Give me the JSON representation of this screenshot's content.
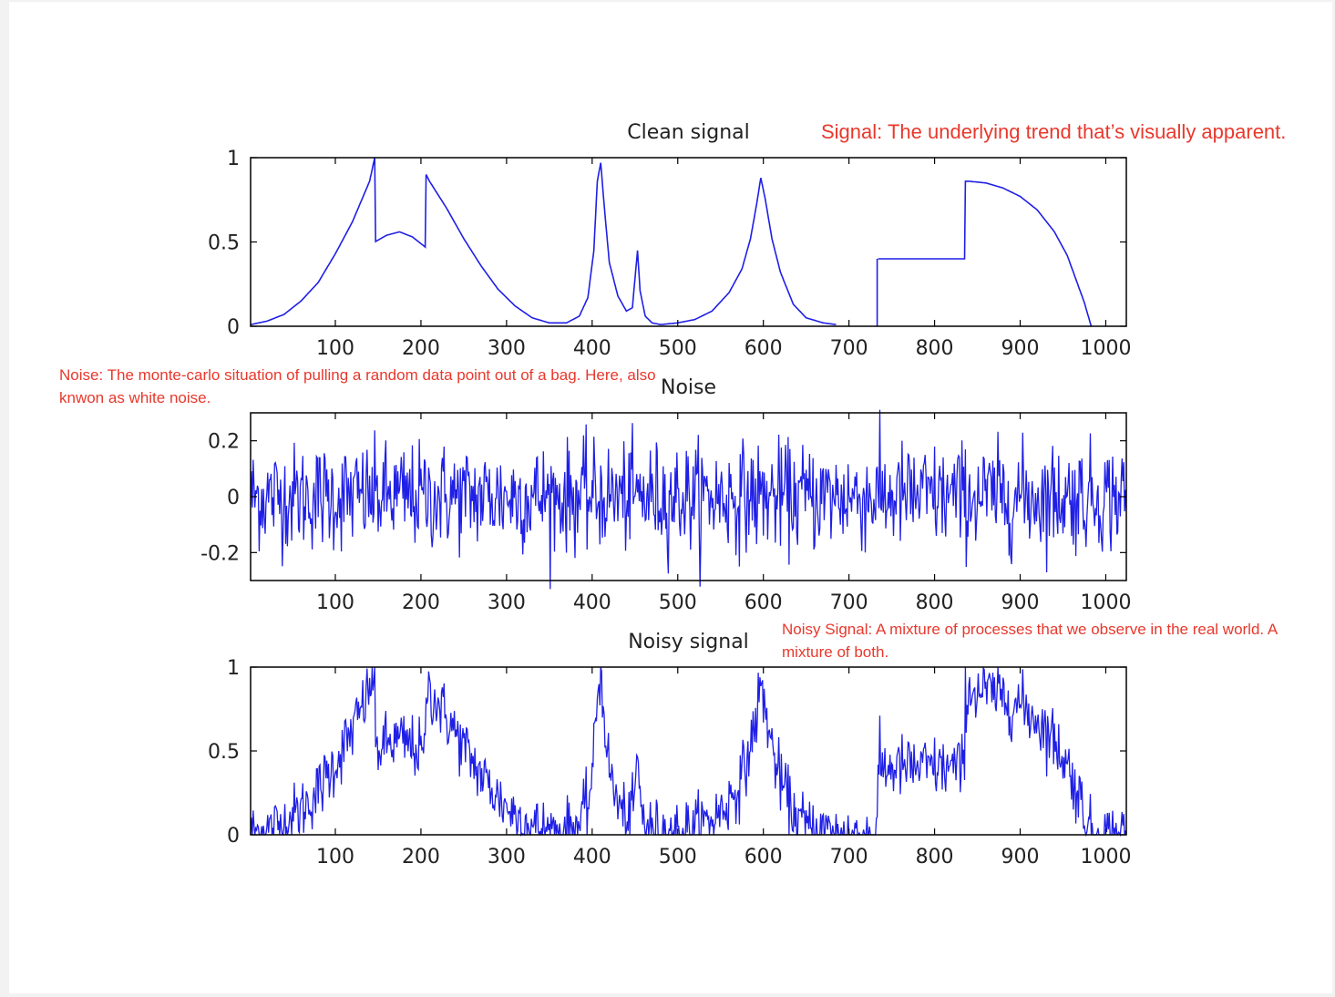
{
  "annotations": {
    "signal": "Signal: The underlying trend that’s visually apparent.",
    "noise": "Noise: The monte-carlo situation of pulling a random data point out of a bag. Here, also knwon as white noise.",
    "noisy": "Noisy Signal: A mixture of processes that we observe in the real world. A mixture of both."
  },
  "colors": {
    "line": "#1f1fe6",
    "annotation": "#e8382c",
    "axes": "#000000"
  },
  "chart_data": [
    {
      "type": "line",
      "title": "Clean signal",
      "xlabel": "",
      "ylabel": "",
      "xlim": [
        1,
        1024
      ],
      "ylim": [
        0,
        1
      ],
      "xticks": [
        100,
        200,
        300,
        400,
        500,
        600,
        700,
        800,
        900,
        1000
      ],
      "yticks": [
        0,
        0.5,
        1
      ],
      "ytick_labels": [
        "0",
        "0.5",
        "1"
      ],
      "grid": false,
      "series": [
        {
          "values_desc": "piecewise",
          "x": [
            1,
            20,
            40,
            60,
            80,
            100,
            120,
            140,
            146,
            146,
            160,
            175,
            190,
            205,
            205,
            210,
            230,
            250,
            270,
            290,
            310,
            330,
            350,
            370,
            385,
            395,
            402,
            406,
            410,
            414,
            420,
            430,
            440,
            447,
            450,
            453,
            456,
            462,
            470,
            480,
            500,
            520,
            540,
            560,
            575,
            585,
            592,
            597,
            602,
            610,
            620,
            635,
            650,
            670,
            685,
            700,
            733,
            733,
            835,
            835,
            840,
            860,
            880,
            900,
            920,
            940,
            955,
            965,
            975,
            983,
            1024
          ],
          "y": [
            0.01,
            0.03,
            0.07,
            0.15,
            0.26,
            0.43,
            0.62,
            0.86,
            1.0,
            0.5,
            0.54,
            0.56,
            0.53,
            0.47,
            0.91,
            0.86,
            0.7,
            0.52,
            0.36,
            0.22,
            0.12,
            0.05,
            0.02,
            0.02,
            0.06,
            0.17,
            0.45,
            0.86,
            0.97,
            0.72,
            0.38,
            0.18,
            0.09,
            0.11,
            0.28,
            0.45,
            0.21,
            0.06,
            0.02,
            0.01,
            0.02,
            0.04,
            0.09,
            0.2,
            0.34,
            0.52,
            0.72,
            0.88,
            0.76,
            0.52,
            0.32,
            0.13,
            0.05,
            0.02,
            0.01,
            null,
            0.4,
            0.4,
            0.4,
            0.86,
            0.86,
            0.85,
            0.82,
            0.77,
            0.69,
            0.56,
            0.42,
            0.28,
            0.14,
            0.0,
            null
          ]
        }
      ]
    },
    {
      "type": "line",
      "title": "Noise",
      "xlabel": "",
      "ylabel": "",
      "xlim": [
        1,
        1024
      ],
      "ylim": [
        -0.3,
        0.3
      ],
      "xticks": [
        100,
        200,
        300,
        400,
        500,
        600,
        700,
        800,
        900,
        1000
      ],
      "yticks": [
        -0.2,
        0,
        0.2
      ],
      "ytick_labels": [
        "-0.2",
        "0",
        "0.2"
      ],
      "grid": false,
      "series": [
        {
          "values_desc": "white noise, std ≈ 0.1, 1024 samples"
        }
      ]
    },
    {
      "type": "line",
      "title": "Noisy signal",
      "xlabel": "",
      "ylabel": "",
      "xlim": [
        1,
        1024
      ],
      "ylim": [
        0,
        1
      ],
      "xticks": [
        100,
        200,
        300,
        400,
        500,
        600,
        700,
        800,
        900,
        1000
      ],
      "yticks": [
        0,
        0.5,
        1
      ],
      "ytick_labels": [
        "0",
        "0.5",
        "1"
      ],
      "grid": false,
      "series": [
        {
          "values_desc": "clean signal + noise, clipped to [0, 1]"
        }
      ]
    }
  ]
}
